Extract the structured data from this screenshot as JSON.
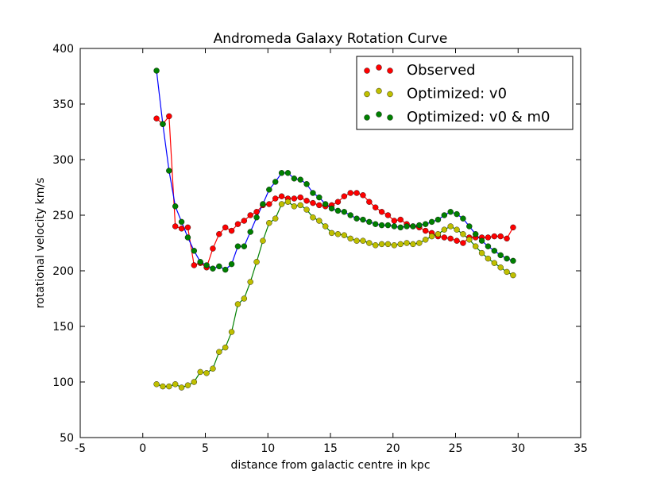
{
  "chart_data": {
    "type": "line",
    "title": "Andromeda Galaxy Rotation Curve",
    "xlabel": "distance from galactic centre in kpc",
    "ylabel": "rotational velocity km/s",
    "x": [
      1.1,
      1.6,
      2.1,
      2.6,
      3.1,
      3.6,
      4.1,
      4.6,
      5.1,
      5.6,
      6.1,
      6.6,
      7.1,
      7.6,
      8.1,
      8.6,
      9.1,
      9.6,
      10.1,
      10.6,
      11.1,
      11.6,
      12.1,
      12.6,
      13.1,
      13.6,
      14.1,
      14.6,
      15.1,
      15.6,
      16.1,
      16.6,
      17.1,
      17.6,
      18.1,
      18.6,
      19.1,
      19.6,
      20.1,
      20.6,
      21.1,
      21.6,
      22.1,
      22.6,
      23.1,
      23.6,
      24.1,
      24.6,
      25.1,
      25.6,
      26.1,
      26.6,
      27.1,
      27.6,
      28.1,
      28.6,
      29.1,
      29.6
    ],
    "series": [
      {
        "name": "Observed",
        "color": "#ff0000",
        "line_color": "#ff0000",
        "values": [
          337,
          332,
          339,
          240,
          238,
          239,
          205,
          207,
          203,
          220,
          233,
          239,
          236,
          242,
          245,
          250,
          253,
          259,
          260,
          265,
          267,
          265,
          265,
          266,
          263,
          261,
          259,
          258,
          259,
          262,
          267,
          270,
          270,
          268,
          262,
          257,
          253,
          250,
          245,
          246,
          242,
          240,
          239,
          236,
          234,
          231,
          230,
          229,
          227,
          225,
          230,
          230,
          230,
          230,
          231,
          231,
          229,
          239
        ]
      },
      {
        "name": "Optimized: v0",
        "color": "#bfbf00",
        "line_color": "#008000",
        "values": [
          98,
          96,
          96,
          98,
          95,
          97,
          100,
          109,
          108,
          112,
          127,
          131,
          145,
          170,
          175,
          190,
          208,
          227,
          243,
          247,
          260,
          262,
          258,
          259,
          255,
          248,
          245,
          240,
          234,
          233,
          232,
          229,
          227,
          227,
          225,
          223,
          224,
          224,
          223,
          224,
          225,
          224,
          225,
          228,
          231,
          233,
          237,
          240,
          237,
          233,
          228,
          222,
          216,
          211,
          207,
          203,
          199,
          196
        ]
      },
      {
        "name": "Optimized: v0 & m0",
        "color": "#008000",
        "line_color": "#0000ff",
        "values": [
          380,
          332,
          290,
          258,
          244,
          230,
          218,
          208,
          205,
          202,
          204,
          201,
          206,
          222,
          222,
          235,
          248,
          260,
          273,
          280,
          288,
          288,
          283,
          282,
          278,
          270,
          266,
          260,
          256,
          254,
          253,
          250,
          247,
          246,
          244,
          242,
          241,
          241,
          240,
          239,
          240,
          240,
          241,
          242,
          244,
          246,
          250,
          253,
          251,
          247,
          240,
          233,
          227,
          222,
          218,
          214,
          211,
          209
        ]
      }
    ],
    "xlim": [
      -5,
      35
    ],
    "xticks": [
      -5,
      0,
      5,
      10,
      15,
      20,
      25,
      30,
      35
    ],
    "ylim": [
      50,
      400
    ],
    "yticks": [
      50,
      100,
      150,
      200,
      250,
      300,
      350,
      400
    ],
    "grid": false,
    "legend": "upper right"
  }
}
